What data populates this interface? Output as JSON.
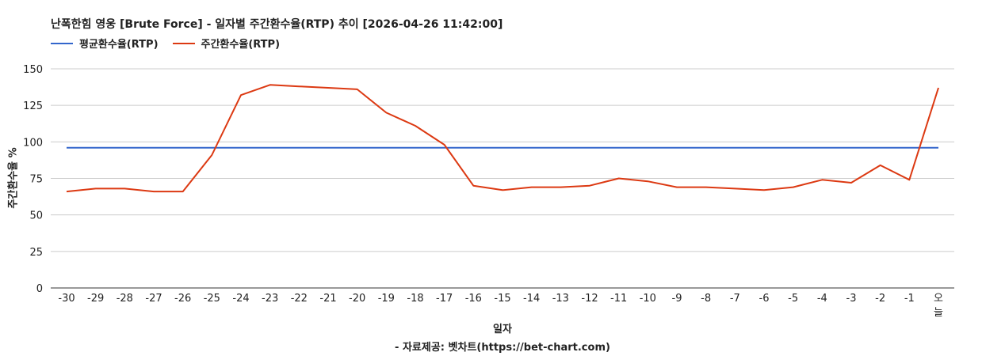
{
  "title": "난폭한힘 영웅 [Brute Force] - 일자별 주간환수율(RTP) 추이 [2026-04-26 11:42:00]",
  "legend": {
    "avg_label": "평균환수율(RTP)",
    "weekly_label": "주간환수율(RTP)"
  },
  "colors": {
    "avg": "#3366cc",
    "weekly": "#dc3912",
    "grid": "#cccccc",
    "axis": "#333333"
  },
  "source_note": "- 자료제공: 벳차트(https://bet-chart.com)",
  "chart_data": {
    "type": "line",
    "title": "난폭한힘 영웅 [Brute Force] - 일자별 주간환수율(RTP) 추이 [2026-04-26 11:42:00]",
    "xlabel": "일자",
    "ylabel": "주간환수율 %",
    "ylim": [
      0,
      150
    ],
    "yticks": [
      "0",
      "25",
      "50",
      "75",
      "100",
      "125",
      "150"
    ],
    "grid": true,
    "legend_position": "top-left",
    "categories": [
      "-30",
      "-29",
      "-28",
      "-27",
      "-26",
      "-25",
      "-24",
      "-23",
      "-22",
      "-21",
      "-20",
      "-19",
      "-18",
      "-17",
      "-16",
      "-15",
      "-14",
      "-13",
      "-12",
      "-11",
      "-10",
      "-9",
      "-8",
      "-7",
      "-6",
      "-5",
      "-4",
      "-3",
      "-2",
      "-1",
      "오늘"
    ],
    "series": [
      {
        "name": "평균환수율(RTP)",
        "values": [
          96,
          96,
          96,
          96,
          96,
          96,
          96,
          96,
          96,
          96,
          96,
          96,
          96,
          96,
          96,
          96,
          96,
          96,
          96,
          96,
          96,
          96,
          96,
          96,
          96,
          96,
          96,
          96,
          96,
          96,
          96
        ]
      },
      {
        "name": "주간환수율(RTP)",
        "values": [
          66,
          68,
          68,
          66,
          66,
          91,
          132,
          139,
          138,
          137,
          136,
          120,
          111,
          98,
          70,
          67,
          69,
          69,
          70,
          75,
          73,
          69,
          69,
          68,
          67,
          69,
          74,
          72,
          84,
          74,
          137
        ]
      }
    ]
  }
}
